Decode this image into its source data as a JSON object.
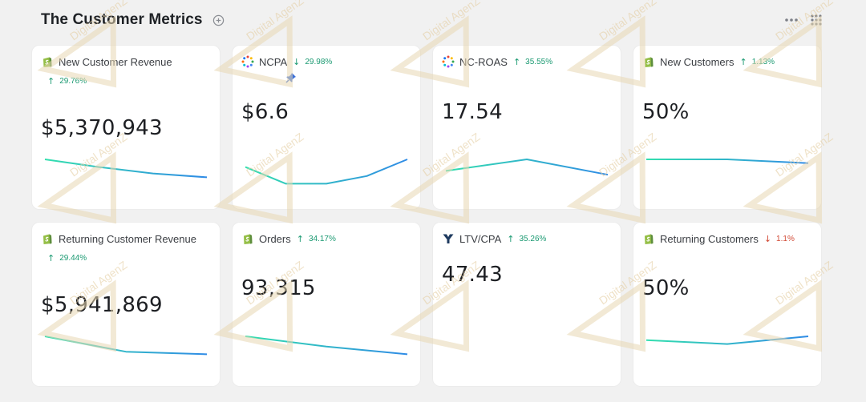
{
  "header": {
    "title": "The Customer Metrics"
  },
  "colors": {
    "up": "#1b9a72",
    "down": "#d24a36",
    "line_start": "#33dfae",
    "line_end": "#2f8be6"
  },
  "watermark_text": "Digital AgenZ",
  "cards": [
    {
      "title": "New Customer Revenue",
      "icon": "shopify-icon",
      "delta": "29.76%",
      "direction": "up",
      "value": "$5,370,943",
      "trend": [
        0.0,
        0.3,
        0.55,
        0.7
      ]
    },
    {
      "title": "NCPA",
      "icon": "multi-source-icon",
      "delta": "29.98%",
      "direction": "down-good",
      "value": "$6.6",
      "trend": [
        0.3,
        0.95,
        0.95,
        0.65,
        0.0
      ]
    },
    {
      "title": "NC-ROAS",
      "icon": "multi-source-icon",
      "delta": "35.55%",
      "direction": "up",
      "value": "17.54",
      "trend": [
        0.45,
        0.0,
        0.6
      ]
    },
    {
      "title": "New Customers",
      "icon": "shopify-icon",
      "delta": "1.13%",
      "direction": "up",
      "value": "50%",
      "trend": [
        0.0,
        0.0,
        0.15
      ]
    },
    {
      "title": "Returning Customer Revenue",
      "icon": "shopify-icon",
      "delta": "29.44%",
      "direction": "up",
      "value": "$5,941,869",
      "trend": [
        0.0,
        0.6,
        0.7
      ]
    },
    {
      "title": "Orders",
      "icon": "shopify-icon",
      "delta": "34.17%",
      "direction": "up",
      "value": "93,315",
      "trend": [
        0.0,
        0.4,
        0.7
      ]
    },
    {
      "title": "LTV/CPA",
      "icon": "triple-whale-icon",
      "delta": "35.26%",
      "direction": "up",
      "value": "47.43",
      "trend": []
    },
    {
      "title": "Returning Customers",
      "icon": "shopify-icon",
      "delta": "1.1%",
      "direction": "down",
      "value": "50%",
      "trend": [
        0.15,
        0.3,
        0.0
      ]
    }
  ]
}
